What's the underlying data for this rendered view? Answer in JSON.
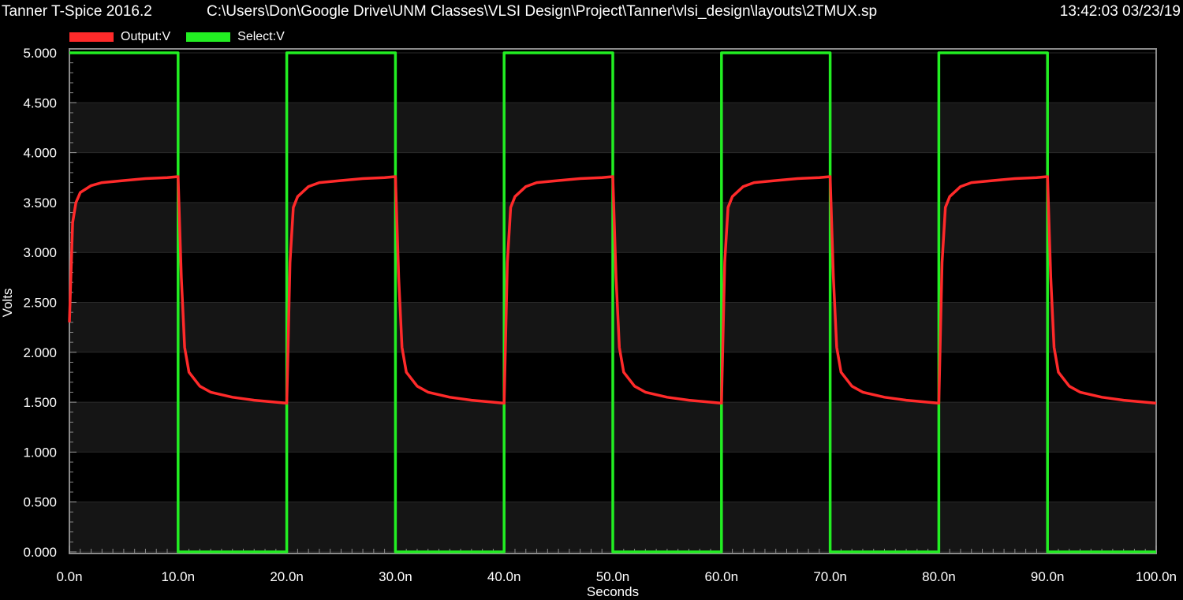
{
  "header": {
    "app_title": "Tanner T-Spice 2016.2",
    "file_path": "C:\\Users\\Don\\Google Drive\\UNM Classes\\VLSI Design\\Project\\Tanner\\vlsi_design\\layouts\\2TMUX.sp",
    "timestamp": "13:42:03 03/23/19"
  },
  "chart_data": {
    "type": "line",
    "xlabel": "Seconds",
    "ylabel": "Volts",
    "xlim": [
      0,
      100
    ],
    "ylim": [
      0,
      5
    ],
    "grid": true,
    "legend_position": "top-left",
    "x_ticks": [
      "0.0n",
      "10.0n",
      "20.0n",
      "30.0n",
      "40.0n",
      "50.0n",
      "60.0n",
      "70.0n",
      "80.0n",
      "90.0n",
      "100.0n"
    ],
    "y_ticks": [
      "0.000",
      "0.500",
      "1.000",
      "1.500",
      "2.000",
      "2.500",
      "3.000",
      "3.500",
      "4.000",
      "4.500",
      "5.000"
    ],
    "series": [
      {
        "name": "Output:V",
        "color": "#ff2a2a",
        "x": [
          0,
          0.3,
          0.6,
          1,
          2,
          3,
          5,
          7,
          9,
          10,
          10.3,
          10.6,
          11,
          12,
          13,
          15,
          17,
          19,
          20,
          20.3,
          20.6,
          21,
          22,
          23,
          25,
          27,
          29,
          30,
          30.3,
          30.6,
          31,
          32,
          33,
          35,
          37,
          39,
          40,
          40.3,
          40.6,
          41,
          42,
          43,
          45,
          47,
          49,
          50,
          50.3,
          50.6,
          51,
          52,
          53,
          55,
          57,
          59,
          60,
          60.3,
          60.6,
          61,
          62,
          63,
          65,
          67,
          69,
          70,
          70.3,
          70.6,
          71,
          72,
          73,
          75,
          77,
          79,
          80,
          80.3,
          80.6,
          81,
          82,
          83,
          85,
          87,
          89,
          90,
          90.3,
          90.6,
          91,
          92,
          93,
          95,
          97,
          99,
          100
        ],
        "y": [
          2.3,
          3.3,
          3.5,
          3.6,
          3.67,
          3.7,
          3.72,
          3.74,
          3.75,
          3.76,
          2.75,
          2.05,
          1.8,
          1.66,
          1.6,
          1.55,
          1.52,
          1.5,
          1.49,
          2.9,
          3.45,
          3.56,
          3.66,
          3.7,
          3.72,
          3.74,
          3.75,
          3.76,
          2.75,
          2.05,
          1.8,
          1.66,
          1.6,
          1.55,
          1.52,
          1.5,
          1.49,
          2.9,
          3.45,
          3.56,
          3.66,
          3.7,
          3.72,
          3.74,
          3.75,
          3.76,
          2.75,
          2.05,
          1.8,
          1.66,
          1.6,
          1.55,
          1.52,
          1.5,
          1.49,
          2.9,
          3.45,
          3.56,
          3.66,
          3.7,
          3.72,
          3.74,
          3.75,
          3.76,
          2.75,
          2.05,
          1.8,
          1.66,
          1.6,
          1.55,
          1.52,
          1.5,
          1.49,
          2.9,
          3.45,
          3.56,
          3.66,
          3.7,
          3.72,
          3.74,
          3.75,
          3.76,
          2.75,
          2.05,
          1.8,
          1.66,
          1.6,
          1.55,
          1.52,
          1.5,
          1.49
        ]
      },
      {
        "name": "Select:V",
        "color": "#22ee22",
        "x": [
          0,
          10,
          10,
          20,
          20,
          30,
          30,
          40,
          40,
          50,
          50,
          60,
          60,
          70,
          70,
          80,
          80,
          90,
          90,
          100
        ],
        "y": [
          5,
          5,
          0,
          0,
          5,
          5,
          0,
          0,
          5,
          5,
          0,
          0,
          5,
          5,
          0,
          0,
          5,
          5,
          0,
          0
        ]
      }
    ]
  }
}
